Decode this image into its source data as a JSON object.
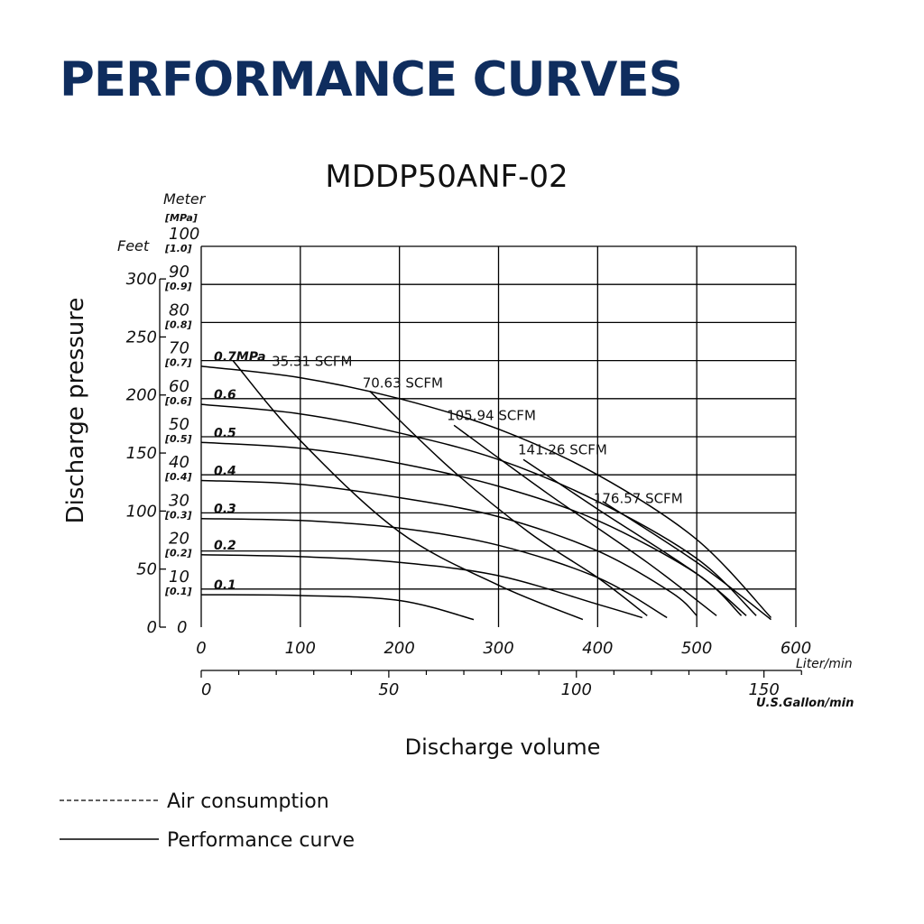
{
  "page_title": "PERFORMANCE CURVES",
  "chart_data": {
    "type": "line",
    "title": "MDDP50ANF-02",
    "xlabel": "Discharge volume",
    "ylabel": "Discharge pressure",
    "x_unit": "Liter/min",
    "x2_unit": "U.S.Gallon/min",
    "y_unit_meter": "Meter",
    "y_unit_mpa": "[MPa]",
    "y_unit_feet": "Feet",
    "xlim": [
      0,
      600
    ],
    "ylim": [
      0,
      100
    ],
    "x_ticks": [
      "0",
      "100",
      "200",
      "300",
      "400",
      "500",
      "600"
    ],
    "x2_ticks": [
      "0",
      "50",
      "100",
      "150"
    ],
    "x2_tick_values_gpm": [
      0,
      50,
      100,
      150
    ],
    "y_ticks_meter": [
      "0",
      "10",
      "20",
      "30",
      "40",
      "50",
      "60",
      "70",
      "80",
      "90",
      "100"
    ],
    "y_ticks_mpa": [
      "[0.1]",
      "[0.2]",
      "[0.3]",
      "[0.4]",
      "[0.5]",
      "[0.6]",
      "[0.7]",
      "[0.8]",
      "[0.9]",
      "[1.0]"
    ],
    "y_ticks_feet": [
      "0",
      "50",
      "100",
      "150",
      "200",
      "250",
      "300"
    ],
    "y_ticks_feet_values": [
      0,
      50,
      100,
      150,
      200,
      250,
      300
    ],
    "performance_series": [
      {
        "name": "0.7MPa",
        "label": "0.7MPa",
        "points": [
          [
            0,
            68.5
          ],
          [
            100,
            65.5
          ],
          [
            200,
            60
          ],
          [
            300,
            52
          ],
          [
            400,
            40
          ],
          [
            500,
            23
          ],
          [
            575,
            2.5
          ]
        ]
      },
      {
        "name": "0.6",
        "label": "0.6",
        "points": [
          [
            0,
            58.5
          ],
          [
            100,
            56
          ],
          [
            200,
            51
          ],
          [
            300,
            44
          ],
          [
            400,
            33
          ],
          [
            500,
            18
          ],
          [
            560,
            3
          ]
        ]
      },
      {
        "name": "0.5",
        "label": "0.5",
        "points": [
          [
            0,
            48.5
          ],
          [
            100,
            47
          ],
          [
            200,
            43
          ],
          [
            300,
            37
          ],
          [
            400,
            28
          ],
          [
            500,
            14
          ],
          [
            545,
            3
          ]
        ]
      },
      {
        "name": "0.4",
        "label": "0.4",
        "points": [
          [
            0,
            38.5
          ],
          [
            100,
            37.5
          ],
          [
            200,
            34
          ],
          [
            300,
            29
          ],
          [
            400,
            20
          ],
          [
            475,
            9
          ],
          [
            500,
            3
          ]
        ]
      },
      {
        "name": "0.3",
        "label": "0.3",
        "points": [
          [
            0,
            28.5
          ],
          [
            100,
            28
          ],
          [
            200,
            26
          ],
          [
            300,
            21.5
          ],
          [
            400,
            13
          ],
          [
            470,
            2.5
          ]
        ]
      },
      {
        "name": "0.2",
        "label": "0.2",
        "points": [
          [
            0,
            19
          ],
          [
            100,
            18.5
          ],
          [
            200,
            17
          ],
          [
            300,
            13.5
          ],
          [
            400,
            6
          ],
          [
            445,
            2.5
          ]
        ]
      },
      {
        "name": "0.1",
        "label": "0.1",
        "points": [
          [
            0,
            8.5
          ],
          [
            100,
            8.3
          ],
          [
            200,
            7
          ],
          [
            275,
            2
          ]
        ]
      }
    ],
    "air_consumption_series": [
      {
        "name": "35.31 SCFM",
        "label": "35.31 SCFM",
        "points": [
          [
            32,
            70
          ],
          [
            100,
            49
          ],
          [
            200,
            25
          ],
          [
            300,
            11
          ],
          [
            385,
            2
          ]
        ]
      },
      {
        "name": "70.63 SCFM",
        "label": "70.63 SCFM",
        "points": [
          [
            170,
            62
          ],
          [
            250,
            42
          ],
          [
            330,
            25
          ],
          [
            400,
            13
          ],
          [
            450,
            3
          ]
        ]
      },
      {
        "name": "105.94 SCFM",
        "label": "105.94 SCFM",
        "points": [
          [
            255,
            53
          ],
          [
            350,
            35
          ],
          [
            450,
            17
          ],
          [
            520,
            3
          ]
        ]
      },
      {
        "name": "141.26 SCFM",
        "label": "141.26 SCFM",
        "points": [
          [
            325,
            44
          ],
          [
            400,
            31
          ],
          [
            500,
            14
          ],
          [
            550,
            3
          ]
        ]
      },
      {
        "name": "176.57 SCFM",
        "label": "176.57 SCFM",
        "points": [
          [
            405,
            33
          ],
          [
            500,
            17
          ],
          [
            575,
            2
          ]
        ]
      }
    ],
    "legend": [
      {
        "style": "dashed",
        "label": "Air consumption"
      },
      {
        "style": "solid",
        "label": "Performance curve"
      }
    ],
    "legend_position": "bottom-left"
  }
}
